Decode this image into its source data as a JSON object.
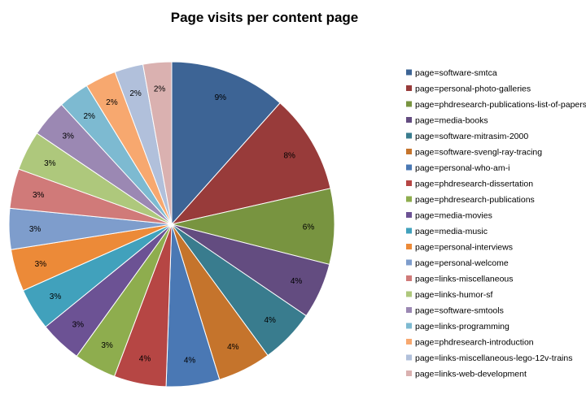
{
  "chart_data": {
    "type": "pie",
    "title": "Page visits per content page",
    "legend_position": "right",
    "categories": [
      "page=software-smtca",
      "page=personal-photo-galleries",
      "page=phdresearch-publications-list-of-papers",
      "page=media-books",
      "page=software-mitrasim-2000",
      "page=software-svengl-ray-tracing",
      "page=personal-who-am-i",
      "page=phdresearch-dissertation",
      "page=phdresearch-publications",
      "page=media-movies",
      "page=media-music",
      "page=personal-interviews",
      "page=personal-welcome",
      "page=links-miscellaneous",
      "page=links-humor-sf",
      "page=software-smtools",
      "page=links-programming",
      "page=phdresearch-introduction",
      "page=links-miscellaneous-lego-12v-trains",
      "page=links-web-development"
    ],
    "values": [
      9.4,
      8.0,
      6.1,
      4.5,
      4.4,
      4.3,
      4.3,
      4.2,
      3.4,
      3.4,
      3.4,
      3.4,
      3.3,
      3.2,
      3.2,
      3.0,
      2.5,
      2.5,
      2.3,
      2.3
    ],
    "data_labels": [
      "9%",
      "8%",
      "6%",
      "4%",
      "4%",
      "4%",
      "4%",
      "4%",
      "3%",
      "3%",
      "3%",
      "3%",
      "3%",
      "3%",
      "3%",
      "3%",
      "2%",
      "2%",
      "2%",
      "2%"
    ],
    "colors": [
      "#3d6495",
      "#983b3a",
      "#789440",
      "#634c80",
      "#397c8e",
      "#c5742c",
      "#4a78b4",
      "#b64644",
      "#8ead4e",
      "#6c5294",
      "#41a1bc",
      "#ec8a38",
      "#7e9dcc",
      "#d07a79",
      "#aec87c",
      "#9b88b3",
      "#7dbad1",
      "#f7a86f",
      "#b1c0db",
      "#dab1b0"
    ]
  }
}
